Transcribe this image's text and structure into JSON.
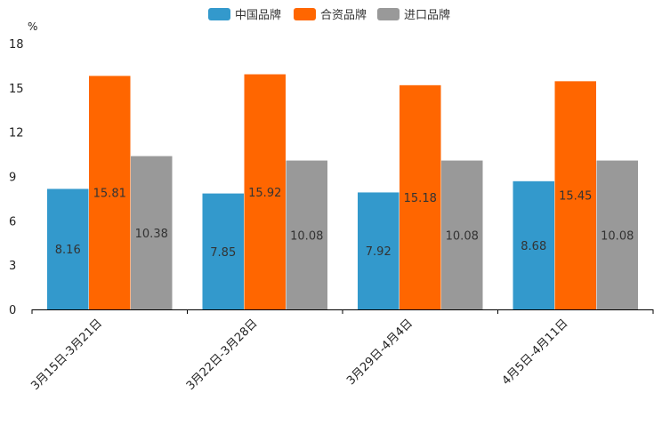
{
  "chart_data": {
    "type": "bar",
    "title": "",
    "xlabel": "",
    "ylabel": "%",
    "ylim": [
      0,
      18
    ],
    "yticks": [
      0,
      3,
      6,
      9,
      12,
      15,
      18
    ],
    "grid": false,
    "legend_position": "top-center",
    "categories": [
      "3月15日-3月21日",
      "3月22日-3月28日",
      "3月29日-4月4日",
      "4月5日-4月11日"
    ],
    "series": [
      {
        "name": "中国品牌",
        "color": "#3399cc",
        "values": [
          8.16,
          7.85,
          7.92,
          8.68
        ]
      },
      {
        "name": "合资品牌",
        "color": "#ff6600",
        "values": [
          15.81,
          15.92,
          15.18,
          15.45
        ]
      },
      {
        "name": "进口品牌",
        "color": "#999999",
        "values": [
          10.38,
          10.08,
          10.08,
          10.08
        ]
      }
    ]
  }
}
